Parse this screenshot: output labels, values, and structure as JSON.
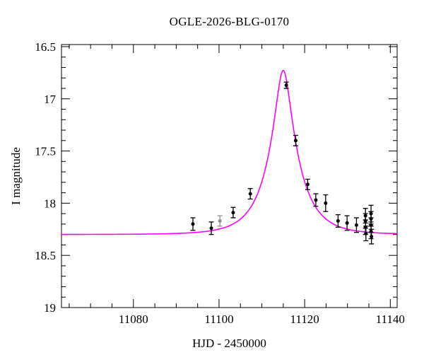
{
  "title": "OGLE-2026-BLG-0170",
  "colors": {
    "background": "#ffffff",
    "axis": "#000000",
    "curve": "#ff00ff",
    "point": "#000000",
    "gray_point": "#8f8f8f"
  },
  "chart_data": {
    "type": "scatter",
    "title": "OGLE-2026-BLG-0170",
    "xlabel": "HJD - 2450000",
    "ylabel": "I magnitude",
    "x_axis": {
      "min": 11063.2,
      "max": 11141.6,
      "major_ticks": [
        11080,
        11100,
        11120,
        11140
      ],
      "major_tick_labels": [
        "11080",
        "11100",
        "11120",
        "11140"
      ],
      "minor_step": 5
    },
    "y_axis": {
      "inverted": true,
      "top_mag": 16.48,
      "bottom_mag": 19.0,
      "major_ticks": [
        16.5,
        17.0,
        17.5,
        18.0,
        18.5,
        19.0
      ],
      "major_tick_labels": [
        "16.5",
        "17",
        "17.5",
        "18",
        "18.5",
        "19"
      ],
      "minor_step": 0.1
    },
    "model_curve": {
      "kind": "paczynski-microlensing",
      "t0": 11115.0,
      "tE": 7.0,
      "u0": 0.24,
      "baseline_mag": 18.3,
      "peak_mag": 16.73,
      "color": "#ff00ff"
    },
    "points": [
      {
        "t": 11093.9,
        "mag": 18.2,
        "err": 0.06,
        "color": "#000000"
      },
      {
        "t": 11098.2,
        "mag": 18.24,
        "err": 0.06,
        "color": "#000000"
      },
      {
        "t": 11100.2,
        "mag": 18.17,
        "err": 0.05,
        "color": "#8f8f8f"
      },
      {
        "t": 11103.3,
        "mag": 18.09,
        "err": 0.05,
        "color": "#000000"
      },
      {
        "t": 11107.3,
        "mag": 17.91,
        "err": 0.05,
        "color": "#000000"
      },
      {
        "t": 11115.7,
        "mag": 16.87,
        "err": 0.03,
        "color": "#000000"
      },
      {
        "t": 11117.9,
        "mag": 17.4,
        "err": 0.05,
        "color": "#000000"
      },
      {
        "t": 11120.7,
        "mag": 17.82,
        "err": 0.05,
        "color": "#000000"
      },
      {
        "t": 11122.6,
        "mag": 17.97,
        "err": 0.06,
        "color": "#000000"
      },
      {
        "t": 11124.9,
        "mag": 18.0,
        "err": 0.08,
        "color": "#000000"
      },
      {
        "t": 11127.8,
        "mag": 18.17,
        "err": 0.06,
        "color": "#000000"
      },
      {
        "t": 11129.9,
        "mag": 18.19,
        "err": 0.07,
        "color": "#000000"
      },
      {
        "t": 11132.1,
        "mag": 18.21,
        "err": 0.07,
        "color": "#000000"
      },
      {
        "t": 11134.2,
        "mag": 18.12,
        "err": 0.07,
        "color": "#000000"
      },
      {
        "t": 11134.2,
        "mag": 18.17,
        "err": 0.07,
        "color": "#000000"
      },
      {
        "t": 11134.2,
        "mag": 18.23,
        "err": 0.07,
        "color": "#000000"
      },
      {
        "t": 11134.3,
        "mag": 18.29,
        "err": 0.07,
        "color": "#000000"
      },
      {
        "t": 11135.5,
        "mag": 18.1,
        "err": 0.08,
        "color": "#000000"
      },
      {
        "t": 11135.5,
        "mag": 18.15,
        "err": 0.07,
        "color": "#000000"
      },
      {
        "t": 11135.5,
        "mag": 18.21,
        "err": 0.07,
        "color": "#000000"
      },
      {
        "t": 11135.5,
        "mag": 18.27,
        "err": 0.07,
        "color": "#000000"
      },
      {
        "t": 11135.6,
        "mag": 18.32,
        "err": 0.07,
        "color": "#000000"
      }
    ]
  }
}
